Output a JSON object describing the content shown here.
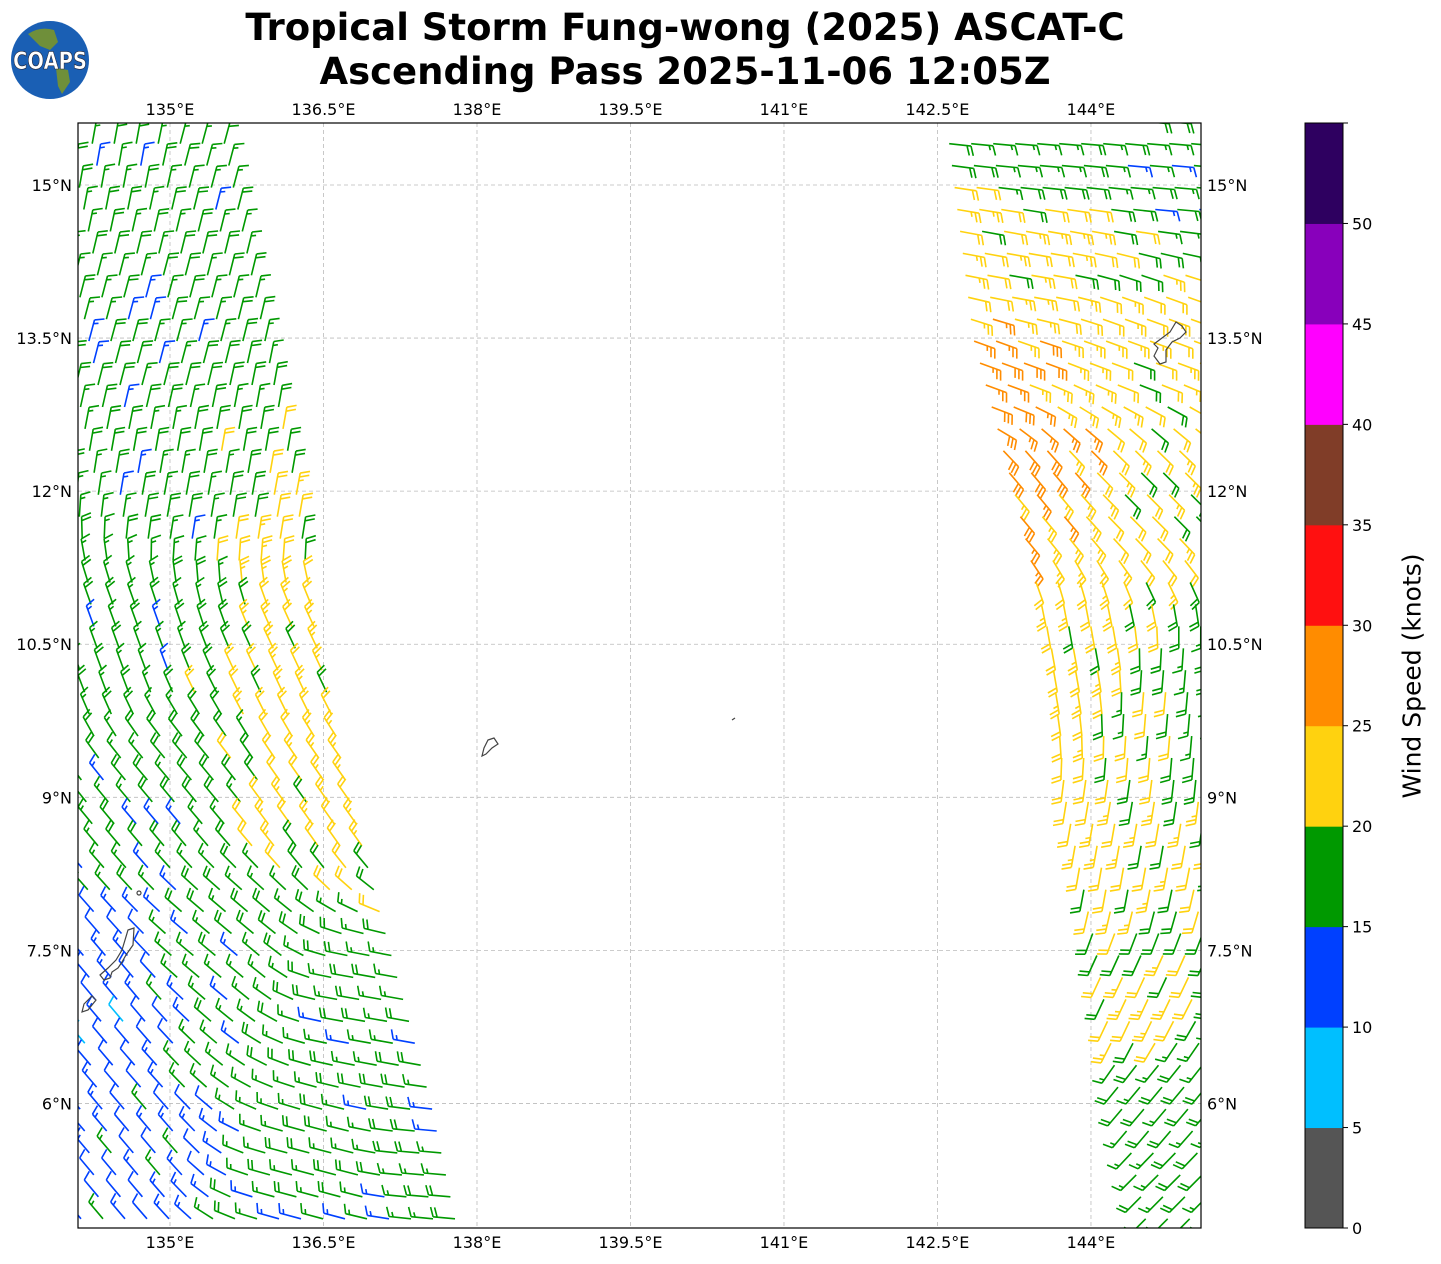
{
  "title": {
    "line1": "Tropical Storm Fung-wong (2025) ASCAT-C",
    "line2": "Ascending Pass 2025-11-06 12:05Z"
  },
  "logo": {
    "text": "COAPS"
  },
  "map": {
    "lon_range": [
      134.1,
      145.08
    ],
    "lat_range": [
      4.8,
      15.6
    ],
    "lon_ticks": [
      {
        "value": 135,
        "label": "135°E"
      },
      {
        "value": 136.5,
        "label": "136.5°E"
      },
      {
        "value": 138,
        "label": "138°E"
      },
      {
        "value": 139.5,
        "label": "139.5°E"
      },
      {
        "value": 141,
        "label": "141°E"
      },
      {
        "value": 142.5,
        "label": "142.5°E"
      },
      {
        "value": 144,
        "label": "144°E"
      }
    ],
    "lat_ticks": [
      {
        "value": 15,
        "label": "15°N"
      },
      {
        "value": 13.5,
        "label": "13.5°N"
      },
      {
        "value": 12,
        "label": "12°N"
      },
      {
        "value": 10.5,
        "label": "10.5°N"
      },
      {
        "value": 9,
        "label": "9°N"
      },
      {
        "value": 7.5,
        "label": "7.5°N"
      },
      {
        "value": 6,
        "label": "6°N"
      }
    ]
  },
  "wind": {
    "swaths": [
      {
        "name": "west-swath",
        "lon_west": 134.0,
        "east_edge": [
          [
            15.6,
            135.54
          ],
          [
            12,
            136.28
          ],
          [
            10.5,
            136.48
          ],
          [
            9,
            136.8
          ],
          [
            7.5,
            137.2
          ],
          [
            6,
            137.6
          ],
          [
            4.8,
            137.85
          ]
        ]
      },
      {
        "name": "east-swath",
        "lon_east": 145.25,
        "west_edge": [
          [
            15.6,
            142.54
          ],
          [
            13.5,
            142.8
          ],
          [
            12,
            143.2
          ],
          [
            10.5,
            143.56
          ],
          [
            9,
            143.7
          ],
          [
            7.5,
            144.0
          ],
          [
            6,
            144.24
          ],
          [
            4.8,
            144.5
          ]
        ]
      }
    ],
    "anchors": [
      {
        "lat": 15.5,
        "lon": 134.5,
        "dir": 10,
        "spd": 17
      },
      {
        "lat": 15.5,
        "lon": 135.4,
        "dir": 15,
        "spd": 17
      },
      {
        "lat": 13.5,
        "lon": 134.8,
        "dir": 15,
        "spd": 17
      },
      {
        "lat": 12,
        "lon": 135,
        "dir": 10,
        "spd": 17
      },
      {
        "lat": 12,
        "lon": 136.1,
        "dir": 10,
        "spd": 21
      },
      {
        "lat": 10.5,
        "lon": 134.5,
        "dir": 340,
        "spd": 17
      },
      {
        "lat": 10.3,
        "lon": 136.3,
        "dir": 335,
        "spd": 22
      },
      {
        "lat": 9,
        "lon": 135,
        "dir": 320,
        "spd": 17
      },
      {
        "lat": 9,
        "lon": 136.6,
        "dir": 325,
        "spd": 22
      },
      {
        "lat": 7.5,
        "lon": 135.5,
        "dir": 310,
        "spd": 17
      },
      {
        "lat": 7,
        "lon": 134.4,
        "dir": 320,
        "spd": 12
      },
      {
        "lat": 7,
        "lon": 137,
        "dir": 280,
        "spd": 17
      },
      {
        "lat": 5.5,
        "lon": 134.5,
        "dir": 320,
        "spd": 13
      },
      {
        "lat": 5.2,
        "lon": 136.5,
        "dir": 285,
        "spd": 17
      },
      {
        "lat": 5.3,
        "lon": 137.6,
        "dir": 275,
        "spd": 17
      },
      {
        "lat": 15.5,
        "lon": 143.5,
        "dir": 95,
        "spd": 17
      },
      {
        "lat": 15.2,
        "lon": 144.8,
        "dir": 95,
        "spd": 17
      },
      {
        "lat": 14.2,
        "lon": 143.3,
        "dir": 100,
        "spd": 22
      },
      {
        "lat": 13.2,
        "lon": 143,
        "dir": 110,
        "spd": 27
      },
      {
        "lat": 13.5,
        "lon": 144.5,
        "dir": 110,
        "spd": 22
      },
      {
        "lat": 12,
        "lon": 143.4,
        "dir": 140,
        "spd": 27
      },
      {
        "lat": 12,
        "lon": 144.5,
        "dir": 135,
        "spd": 22
      },
      {
        "lat": 10.5,
        "lon": 143.8,
        "dir": 170,
        "spd": 22
      },
      {
        "lat": 10,
        "lon": 144.8,
        "dir": 185,
        "spd": 18
      },
      {
        "lat": 8.5,
        "lon": 144.2,
        "dir": 190,
        "spd": 22
      },
      {
        "lat": 7,
        "lon": 144.3,
        "dir": 205,
        "spd": 21
      },
      {
        "lat": 6,
        "lon": 144.6,
        "dir": 220,
        "spd": 17
      },
      {
        "lat": 5.2,
        "lon": 144.7,
        "dir": 225,
        "spd": 18
      }
    ]
  },
  "colorbar": {
    "label": "Wind Speed (knots)",
    "bins": [
      {
        "min": 0,
        "max": 5,
        "color": "#555555"
      },
      {
        "min": 5,
        "max": 10,
        "color": "#00bfff"
      },
      {
        "min": 10,
        "max": 15,
        "color": "#0040ff"
      },
      {
        "min": 15,
        "max": 20,
        "color": "#009900"
      },
      {
        "min": 20,
        "max": 25,
        "color": "#ffd20f"
      },
      {
        "min": 25,
        "max": 30,
        "color": "#ff8c00"
      },
      {
        "min": 30,
        "max": 35,
        "color": "#ff1010"
      },
      {
        "min": 35,
        "max": 40,
        "color": "#803d28"
      },
      {
        "min": 40,
        "max": 45,
        "color": "#ff00ff"
      },
      {
        "min": 45,
        "max": 50,
        "color": "#8800bb"
      },
      {
        "min": 50,
        "max": 55,
        "color": "#2e0060"
      }
    ],
    "ticks": [
      "0",
      "5",
      "10",
      "15",
      "20",
      "25",
      "30",
      "35",
      "40",
      "45",
      "50"
    ]
  }
}
